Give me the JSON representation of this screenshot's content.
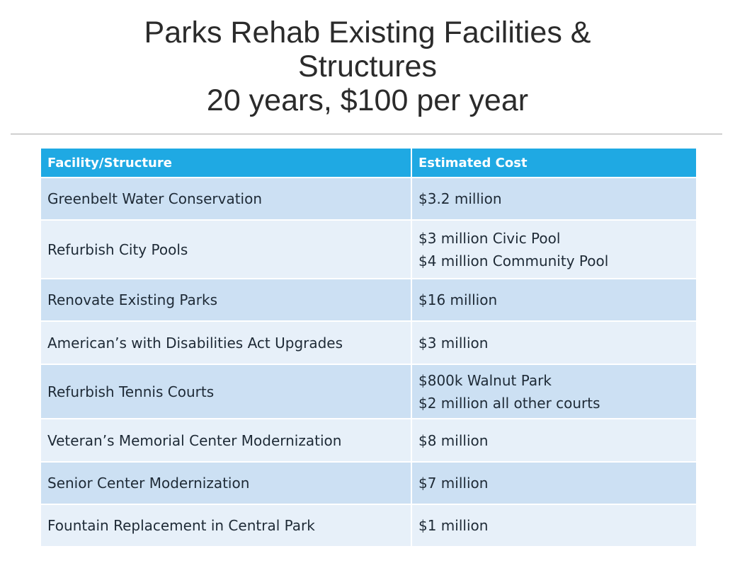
{
  "header": {
    "title_lines": [
      "Parks Rehab Existing Facilities & Structures",
      "20 years, $100 per year"
    ]
  },
  "table": {
    "columns": [
      "Facility/Structure",
      "Estimated Cost"
    ],
    "rows": [
      [
        "Greenbelt Water Conservation",
        [
          "$3.2 million"
        ]
      ],
      [
        "Refurbish City Pools",
        [
          "$3 million Civic Pool",
          "$4 million Community Pool"
        ]
      ],
      [
        "Renovate Existing Parks",
        [
          "$16 million"
        ]
      ],
      [
        "American’s with Disabilities Act Upgrades",
        [
          "$3 million"
        ]
      ],
      [
        "Refurbish Tennis Courts",
        [
          "$800k Walnut Park",
          "$2 million all other courts"
        ]
      ],
      [
        "Veteran’s Memorial Center Modernization",
        [
          "$8 million"
        ]
      ],
      [
        "Senior Center Modernization",
        [
          "$7 million"
        ]
      ],
      [
        "Fountain Replacement in Central Park",
        [
          "$1 million"
        ]
      ]
    ]
  }
}
